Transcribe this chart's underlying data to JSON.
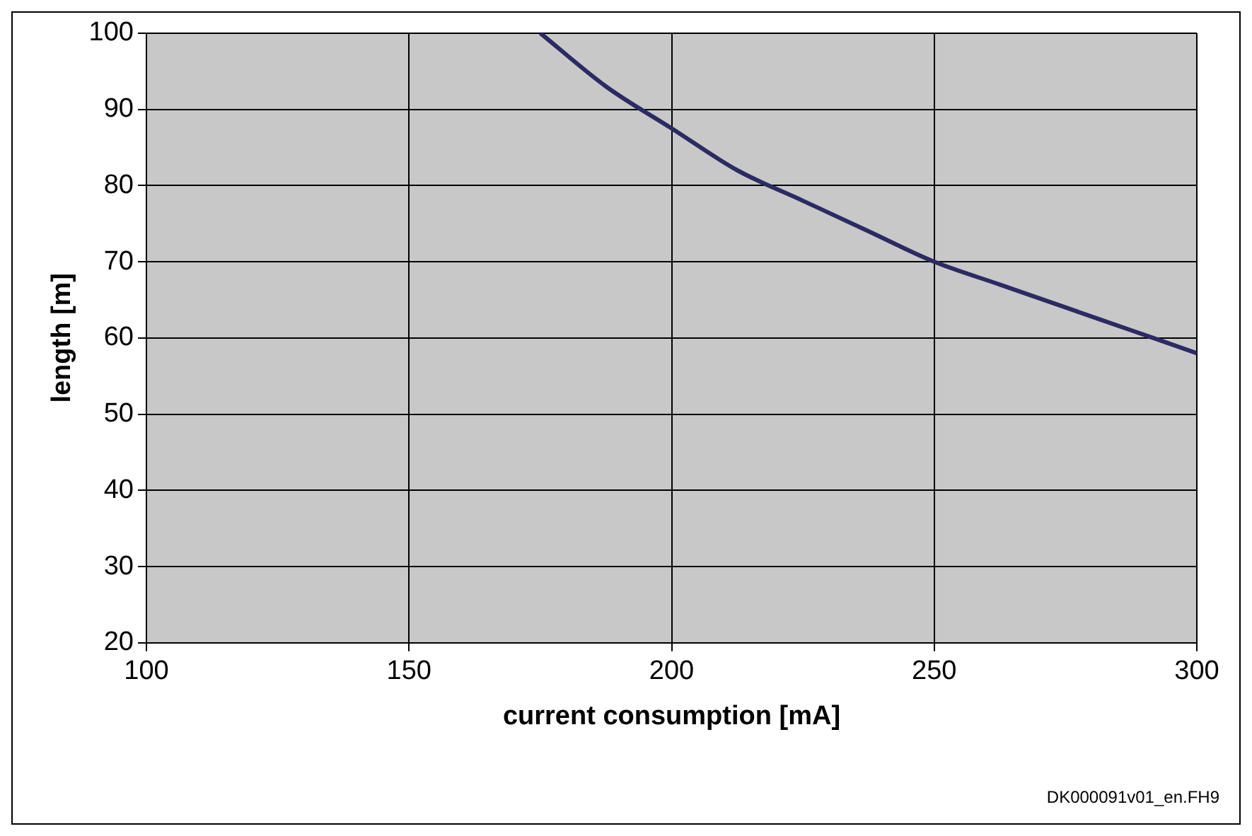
{
  "chart_data": {
    "type": "line",
    "xlabel": "current consumption [mA]",
    "ylabel": "length [m]",
    "x": [
      175,
      187.5,
      200,
      212.5,
      225,
      237.5,
      250,
      262.5,
      275,
      287.5,
      300
    ],
    "series": [
      {
        "color": "#2b2b64",
        "values": [
          100,
          93,
          87.5,
          82,
          78,
          74,
          70,
          67,
          64,
          61,
          58
        ]
      }
    ],
    "xlim": [
      100,
      300
    ],
    "xticks": [
      100,
      150,
      200,
      250,
      300
    ],
    "ylim": [
      20,
      100
    ],
    "yticks": [
      20,
      30,
      40,
      50,
      60,
      70,
      80,
      90,
      100
    ],
    "grid": true,
    "legend": false,
    "marker": "none",
    "line_style": "solid",
    "annotations": [
      "DK000091v01_en.FH9"
    ]
  }
}
